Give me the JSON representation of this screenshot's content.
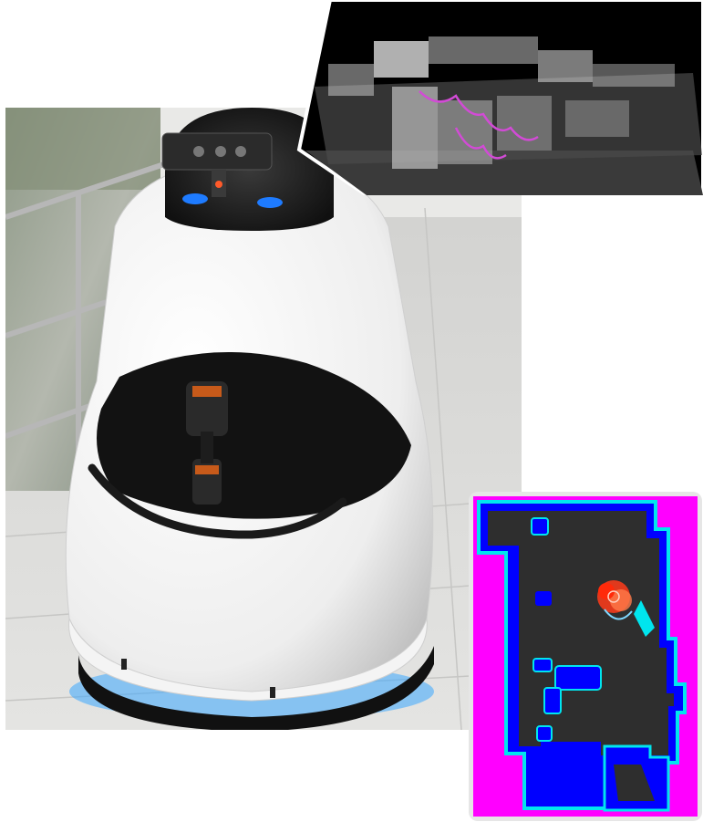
{
  "scene": {
    "photo": {
      "subject": "robot-photo",
      "colors": {
        "body": "#f2f2f2",
        "visor": "#1b1b1b",
        "accent_led": "#1e7bff",
        "floor": "#d7d7d5",
        "window": "#9aa396"
      }
    },
    "point_cloud_inset": {
      "colors": {
        "background": "#000000",
        "points": "#cfcfcf",
        "path": "#d24bd6",
        "ground": "#3a3a3a"
      }
    },
    "costmap_inset": {
      "colors": {
        "unknown": "#ff00ff",
        "free": "#2e2e2e",
        "inflation": "#0000ff",
        "obstacle_edge": "#00e5ee",
        "particles": "#ff3b1a",
        "frame": "#e6e6e6"
      }
    }
  }
}
